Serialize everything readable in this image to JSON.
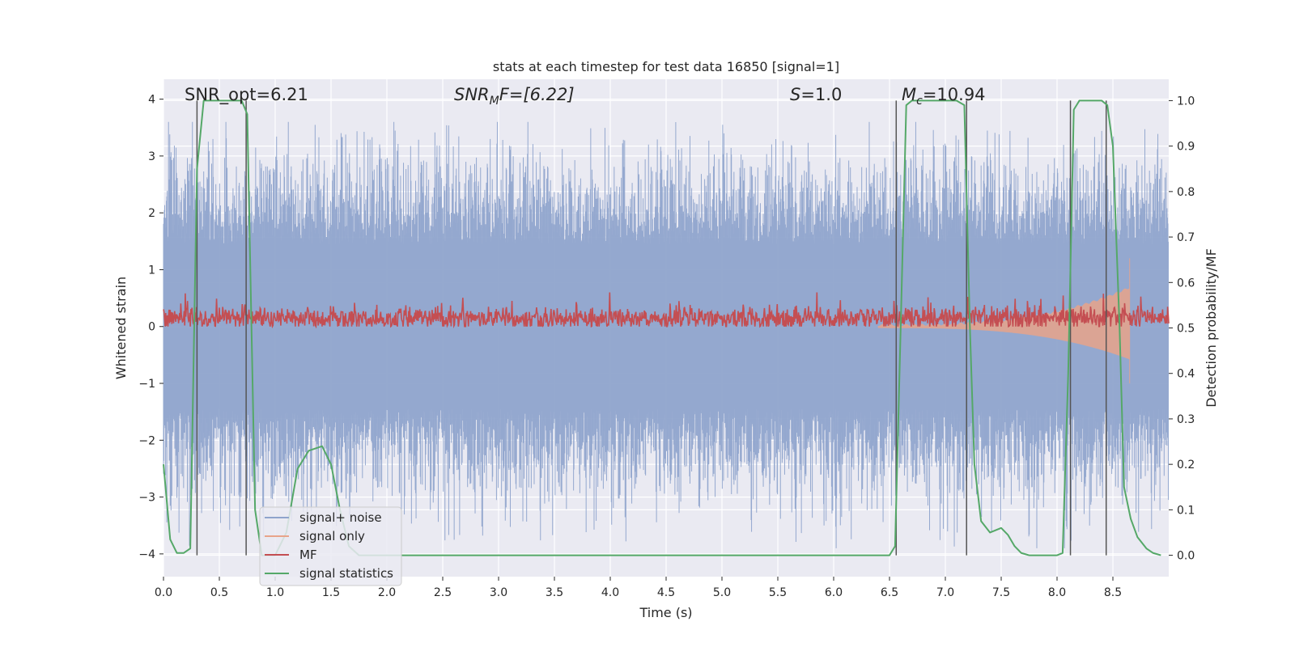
{
  "chart_data": {
    "type": "line",
    "title": "stats at each timestep for test data 16850 [signal=1]",
    "xlabel": "Time (s)",
    "ylabel": "Whitened strain",
    "y2label": "Detection probability/MF",
    "xlim": [
      0.0,
      9.0
    ],
    "ylim": [
      -4.4,
      4.35
    ],
    "y2lim": [
      -0.047,
      1.047
    ],
    "xticks": [
      "0.0",
      "0.5",
      "1.0",
      "1.5",
      "2.0",
      "2.5",
      "3.0",
      "3.5",
      "4.0",
      "4.5",
      "5.0",
      "5.5",
      "6.0",
      "6.5",
      "7.0",
      "7.5",
      "8.0",
      "8.5"
    ],
    "yticks": [
      "4",
      "3",
      "2",
      "1",
      "0",
      "−1",
      "−2",
      "−3",
      "−4"
    ],
    "y2ticks": [
      "1.0",
      "0.9",
      "0.8",
      "0.7",
      "0.6",
      "0.5",
      "0.4",
      "0.3",
      "0.2",
      "0.1",
      "0.0"
    ],
    "annotations": {
      "snr_opt": "SNR_opt=6.21",
      "snr_mf_sym": "SNR",
      "snr_mf_sub": "M",
      "snr_mf_rest": "F=[6.22]",
      "s_sym": "S",
      "s_rest": "=1.0",
      "mc_sym": "M",
      "mc_sub": "c",
      "mc_rest": "=10.94"
    },
    "series": [
      {
        "name": "signal+ noise",
        "color": "#8fa4cc",
        "description": "whitened noise band, roughly ±1.5 with spikes to ±3.5"
      },
      {
        "name": "signal only",
        "color": "#e8a48a",
        "chirp_start_s": 6.4,
        "chirp_end_s": 8.65,
        "peak_amplitude": [
          1.2,
          -1.0
        ]
      },
      {
        "name": "MF",
        "color": "#c44e52",
        "baseline": 0.15,
        "range": [
          0.0,
          0.6
        ]
      },
      {
        "name": "signal statistics",
        "color": "#55a868",
        "x": [
          0.0,
          0.06,
          0.12,
          0.18,
          0.24,
          0.3,
          0.36,
          0.42,
          0.5,
          0.6,
          0.7,
          0.75,
          0.82,
          0.88,
          0.95,
          1.0,
          1.1,
          1.2,
          1.3,
          1.42,
          1.5,
          1.58,
          1.66,
          1.75,
          1.85,
          2.0,
          2.5,
          3.0,
          4.0,
          5.0,
          6.0,
          6.4,
          6.5,
          6.55,
          6.6,
          6.65,
          6.7,
          6.8,
          7.0,
          7.1,
          7.17,
          7.22,
          7.26,
          7.32,
          7.4,
          7.5,
          7.56,
          7.62,
          7.68,
          7.75,
          7.9,
          8.0,
          8.05,
          8.1,
          8.15,
          8.2,
          8.25,
          8.3,
          8.4,
          8.45,
          8.5,
          8.56,
          8.6,
          8.66,
          8.72,
          8.8,
          8.86,
          8.93
        ],
        "values": [
          0.2,
          0.035,
          0.005,
          0.005,
          0.015,
          0.85,
          1.0,
          1.0,
          1.0,
          1.0,
          1.0,
          0.97,
          0.1,
          0.0,
          0.0,
          0.0,
          0.05,
          0.19,
          0.23,
          0.24,
          0.2,
          0.1,
          0.02,
          0.0,
          0.0,
          0.0,
          0.0,
          0.0,
          0.0,
          0.0,
          0.0,
          0.0,
          0.0,
          0.02,
          0.5,
          0.99,
          1.0,
          1.0,
          1.0,
          1.0,
          0.99,
          0.5,
          0.2,
          0.075,
          0.05,
          0.06,
          0.045,
          0.02,
          0.005,
          0.0,
          0.0,
          0.0,
          0.005,
          0.4,
          0.98,
          1.0,
          1.0,
          1.0,
          1.0,
          0.99,
          0.9,
          0.5,
          0.15,
          0.08,
          0.04,
          0.015,
          0.005,
          0.0
        ]
      },
      {
        "name": "threshold markers",
        "color": "#555555",
        "x": [
          0.3,
          0.74,
          6.56,
          7.19,
          8.12,
          8.44
        ]
      }
    ],
    "legend": {
      "position": "lower-left",
      "entries": [
        {
          "label": "signal+ noise",
          "color": "#8fa4cc"
        },
        {
          "label": "signal only",
          "color": "#e8a48a"
        },
        {
          "label": "MF",
          "color": "#c44e52"
        },
        {
          "label": "signal statistics",
          "color": "#55a868"
        }
      ]
    },
    "colors": {
      "background": "#eaeaf2",
      "grid": "#ffffff",
      "markers": "#555555"
    }
  }
}
